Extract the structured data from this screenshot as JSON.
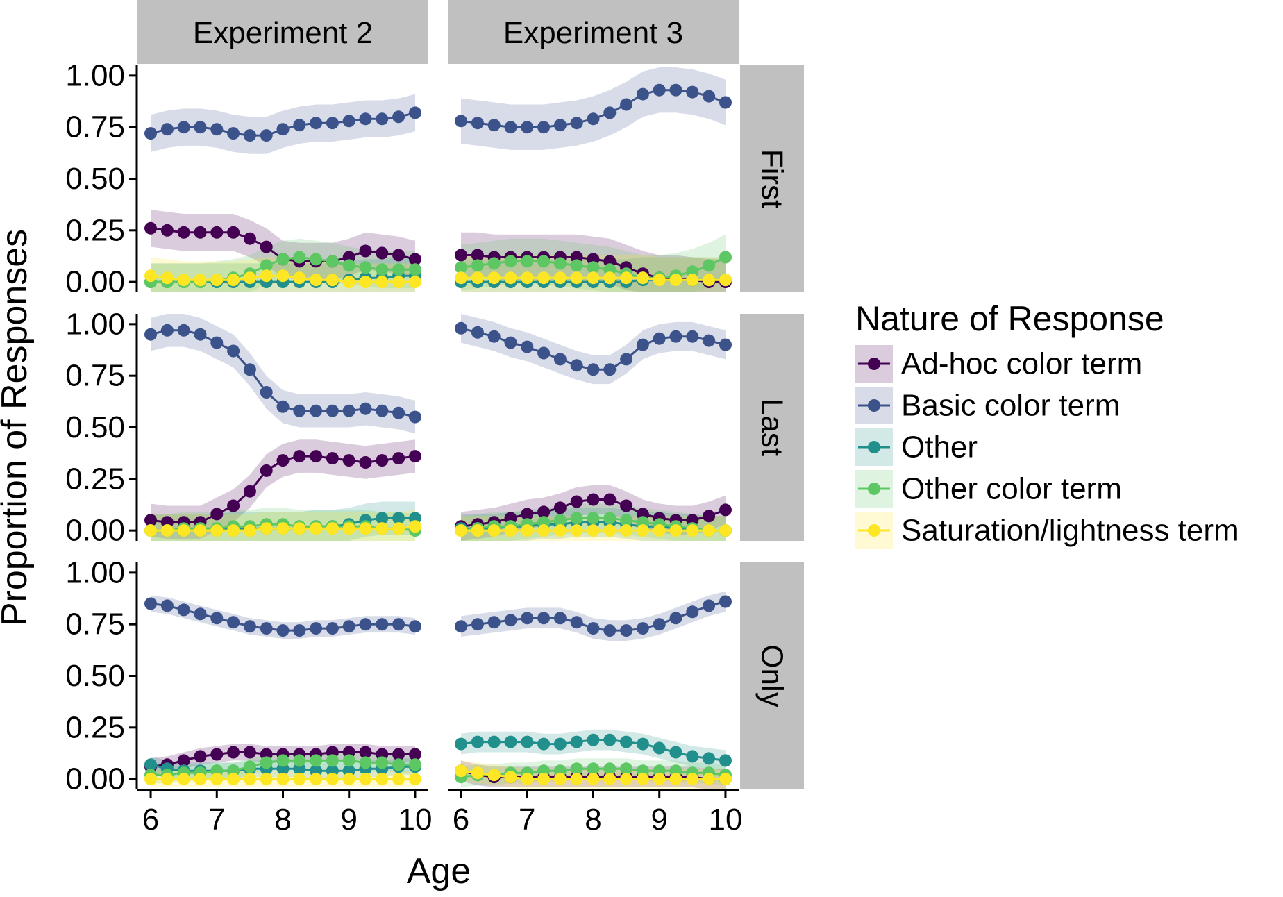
{
  "chart_data": {
    "type": "line",
    "ylabel": "Proportion of Responses",
    "xlabel": "Age",
    "xlim": [
      5.8,
      10.2
    ],
    "ylim": [
      -0.05,
      1.05
    ],
    "xticks": [
      "6",
      "7",
      "8",
      "9",
      "10"
    ],
    "yticks": [
      "0.00",
      "0.25",
      "0.50",
      "0.75",
      "1.00"
    ],
    "column_facets": [
      "Experiment 2",
      "Experiment 3"
    ],
    "row_facets": [
      "First",
      "Last",
      "Only"
    ],
    "grid": false,
    "legend": {
      "title": "Nature of Response",
      "placement": "right",
      "entries": [
        "Ad-hoc color term",
        "Basic color term",
        "Other",
        "Other color term",
        "Saturation/lightness term"
      ]
    },
    "series_colors": {
      "Ad-hoc color term": "#440154",
      "Basic color term": "#3B528B",
      "Other": "#21908C",
      "Other color term": "#5DC863",
      "Saturation/lightness term": "#FDE725"
    },
    "x": [
      6.0,
      6.25,
      6.5,
      6.75,
      7.0,
      7.25,
      7.5,
      7.75,
      8.0,
      8.25,
      8.5,
      8.75,
      9.0,
      9.25,
      9.5,
      9.75,
      10.0
    ],
    "panels": [
      {
        "column": "Experiment 2",
        "row": "First",
        "ribbon": 0.09,
        "series": [
          {
            "name": "Ad-hoc color term",
            "values": [
              0.26,
              0.25,
              0.24,
              0.24,
              0.24,
              0.24,
              0.21,
              0.17,
              0.11,
              0.1,
              0.1,
              0.1,
              0.12,
              0.15,
              0.14,
              0.13,
              0.11
            ]
          },
          {
            "name": "Basic color term",
            "values": [
              0.72,
              0.74,
              0.75,
              0.75,
              0.74,
              0.72,
              0.71,
              0.71,
              0.74,
              0.76,
              0.77,
              0.77,
              0.78,
              0.79,
              0.79,
              0.8,
              0.82
            ]
          },
          {
            "name": "Other",
            "values": [
              0.0,
              0.0,
              0.0,
              0.0,
              0.0,
              0.0,
              0.0,
              0.0,
              0.0,
              0.0,
              0.0,
              0.0,
              0.01,
              0.02,
              0.02,
              0.03,
              0.03
            ]
          },
          {
            "name": "Other color term",
            "values": [
              0.0,
              0.0,
              0.0,
              0.0,
              0.01,
              0.02,
              0.04,
              0.08,
              0.11,
              0.12,
              0.11,
              0.1,
              0.08,
              0.07,
              0.06,
              0.06,
              0.06
            ]
          },
          {
            "name": "Saturation/lightness term",
            "values": [
              0.03,
              0.02,
              0.01,
              0.01,
              0.01,
              0.01,
              0.02,
              0.03,
              0.03,
              0.02,
              0.01,
              0.01,
              0.0,
              0.0,
              0.0,
              0.0,
              0.0
            ]
          }
        ]
      },
      {
        "column": "Experiment 3",
        "row": "First",
        "ribbon": 0.11,
        "series": [
          {
            "name": "Ad-hoc color term",
            "values": [
              0.13,
              0.13,
              0.12,
              0.12,
              0.12,
              0.12,
              0.12,
              0.12,
              0.11,
              0.1,
              0.07,
              0.04,
              0.02,
              0.02,
              0.01,
              0.0,
              0.0
            ]
          },
          {
            "name": "Basic color term",
            "values": [
              0.78,
              0.77,
              0.76,
              0.75,
              0.75,
              0.75,
              0.76,
              0.77,
              0.79,
              0.82,
              0.86,
              0.91,
              0.93,
              0.93,
              0.92,
              0.9,
              0.87
            ]
          },
          {
            "name": "Other",
            "values": [
              0.0,
              0.0,
              0.0,
              0.0,
              0.0,
              0.0,
              0.0,
              0.0,
              0.0,
              0.0,
              0.0,
              0.01,
              0.01,
              0.01,
              0.01,
              0.01,
              0.01
            ]
          },
          {
            "name": "Other color term",
            "values": [
              0.07,
              0.08,
              0.09,
              0.1,
              0.1,
              0.1,
              0.09,
              0.08,
              0.07,
              0.06,
              0.04,
              0.02,
              0.02,
              0.03,
              0.05,
              0.08,
              0.12
            ]
          },
          {
            "name": "Saturation/lightness term",
            "values": [
              0.02,
              0.02,
              0.02,
              0.02,
              0.02,
              0.02,
              0.02,
              0.02,
              0.02,
              0.02,
              0.02,
              0.02,
              0.01,
              0.01,
              0.01,
              0.01,
              0.01
            ]
          }
        ]
      },
      {
        "column": "Experiment 2",
        "row": "Last",
        "ribbon": 0.08,
        "series": [
          {
            "name": "Ad-hoc color term",
            "values": [
              0.05,
              0.04,
              0.04,
              0.04,
              0.08,
              0.12,
              0.19,
              0.29,
              0.34,
              0.36,
              0.36,
              0.35,
              0.34,
              0.33,
              0.34,
              0.35,
              0.36
            ]
          },
          {
            "name": "Basic color term",
            "values": [
              0.95,
              0.97,
              0.97,
              0.95,
              0.91,
              0.87,
              0.78,
              0.67,
              0.6,
              0.58,
              0.58,
              0.58,
              0.58,
              0.59,
              0.58,
              0.57,
              0.55
            ]
          },
          {
            "name": "Other",
            "values": [
              0.0,
              0.0,
              0.0,
              0.0,
              0.0,
              0.01,
              0.01,
              0.01,
              0.01,
              0.01,
              0.02,
              0.02,
              0.03,
              0.05,
              0.06,
              0.06,
              0.06
            ]
          },
          {
            "name": "Other color term",
            "values": [
              0.0,
              0.0,
              0.01,
              0.01,
              0.01,
              0.02,
              0.02,
              0.03,
              0.03,
              0.02,
              0.02,
              0.02,
              0.02,
              0.02,
              0.01,
              0.01,
              0.0
            ]
          },
          {
            "name": "Saturation/lightness term",
            "values": [
              0.0,
              0.0,
              0.0,
              0.0,
              0.0,
              0.0,
              0.0,
              0.01,
              0.01,
              0.01,
              0.01,
              0.01,
              0.01,
              0.01,
              0.01,
              0.01,
              0.02
            ]
          }
        ]
      },
      {
        "column": "Experiment 3",
        "row": "Last",
        "ribbon": 0.07,
        "series": [
          {
            "name": "Ad-hoc color term",
            "values": [
              0.02,
              0.03,
              0.04,
              0.06,
              0.08,
              0.09,
              0.11,
              0.14,
              0.15,
              0.15,
              0.12,
              0.08,
              0.06,
              0.05,
              0.05,
              0.07,
              0.1
            ]
          },
          {
            "name": "Basic color term",
            "values": [
              0.98,
              0.96,
              0.94,
              0.91,
              0.89,
              0.86,
              0.83,
              0.8,
              0.78,
              0.78,
              0.83,
              0.9,
              0.93,
              0.94,
              0.94,
              0.92,
              0.9
            ]
          },
          {
            "name": "Other",
            "values": [
              0.01,
              0.01,
              0.01,
              0.02,
              0.02,
              0.03,
              0.03,
              0.04,
              0.04,
              0.04,
              0.03,
              0.02,
              0.02,
              0.01,
              0.01,
              0.0,
              0.0
            ]
          },
          {
            "name": "Other color term",
            "values": [
              0.0,
              0.01,
              0.02,
              0.02,
              0.03,
              0.04,
              0.05,
              0.06,
              0.06,
              0.06,
              0.05,
              0.04,
              0.03,
              0.02,
              0.01,
              0.0,
              0.0
            ]
          },
          {
            "name": "Saturation/lightness term",
            "values": [
              0.0,
              0.0,
              0.0,
              0.0,
              0.0,
              0.0,
              0.0,
              0.0,
              0.0,
              0.0,
              0.0,
              0.0,
              0.0,
              0.0,
              0.0,
              0.0,
              0.0
            ]
          }
        ]
      },
      {
        "column": "Experiment 2",
        "row": "Only",
        "ribbon": 0.04,
        "series": [
          {
            "name": "Ad-hoc color term",
            "values": [
              0.06,
              0.07,
              0.09,
              0.11,
              0.12,
              0.13,
              0.13,
              0.12,
              0.12,
              0.12,
              0.12,
              0.13,
              0.13,
              0.13,
              0.12,
              0.12,
              0.12
            ]
          },
          {
            "name": "Basic color term",
            "values": [
              0.85,
              0.84,
              0.82,
              0.8,
              0.78,
              0.76,
              0.74,
              0.73,
              0.72,
              0.72,
              0.73,
              0.73,
              0.74,
              0.75,
              0.75,
              0.75,
              0.74
            ]
          },
          {
            "name": "Other",
            "values": [
              0.07,
              0.05,
              0.04,
              0.04,
              0.04,
              0.04,
              0.05,
              0.05,
              0.05,
              0.05,
              0.04,
              0.04,
              0.04,
              0.05,
              0.05,
              0.06,
              0.06
            ]
          },
          {
            "name": "Other color term",
            "values": [
              0.02,
              0.02,
              0.03,
              0.03,
              0.04,
              0.04,
              0.06,
              0.08,
              0.09,
              0.09,
              0.09,
              0.09,
              0.09,
              0.08,
              0.08,
              0.07,
              0.07
            ]
          },
          {
            "name": "Saturation/lightness term",
            "values": [
              0.0,
              0.0,
              0.0,
              0.0,
              0.0,
              0.0,
              0.0,
              0.0,
              0.0,
              0.0,
              0.0,
              0.0,
              0.0,
              0.0,
              0.0,
              0.0,
              0.0
            ]
          }
        ]
      },
      {
        "column": "Experiment 3",
        "row": "Only",
        "ribbon": 0.05,
        "series": [
          {
            "name": "Ad-hoc color term",
            "values": [
              0.04,
              0.02,
              0.01,
              0.01,
              0.01,
              0.01,
              0.01,
              0.01,
              0.01,
              0.01,
              0.01,
              0.01,
              0.01,
              0.01,
              0.01,
              0.0,
              0.0
            ]
          },
          {
            "name": "Basic color term",
            "values": [
              0.74,
              0.75,
              0.76,
              0.77,
              0.78,
              0.78,
              0.78,
              0.76,
              0.73,
              0.72,
              0.72,
              0.73,
              0.75,
              0.78,
              0.81,
              0.84,
              0.86
            ]
          },
          {
            "name": "Other",
            "values": [
              0.17,
              0.18,
              0.18,
              0.18,
              0.18,
              0.17,
              0.17,
              0.18,
              0.19,
              0.19,
              0.18,
              0.17,
              0.15,
              0.13,
              0.11,
              0.1,
              0.09
            ]
          },
          {
            "name": "Other color term",
            "values": [
              0.01,
              0.02,
              0.02,
              0.03,
              0.03,
              0.04,
              0.04,
              0.05,
              0.05,
              0.05,
              0.05,
              0.04,
              0.04,
              0.04,
              0.03,
              0.03,
              0.02
            ]
          },
          {
            "name": "Saturation/lightness term",
            "values": [
              0.04,
              0.03,
              0.02,
              0.01,
              0.0,
              0.0,
              0.0,
              0.0,
              0.0,
              0.0,
              0.0,
              0.0,
              0.0,
              0.0,
              0.0,
              0.0,
              0.0
            ]
          }
        ]
      }
    ]
  }
}
